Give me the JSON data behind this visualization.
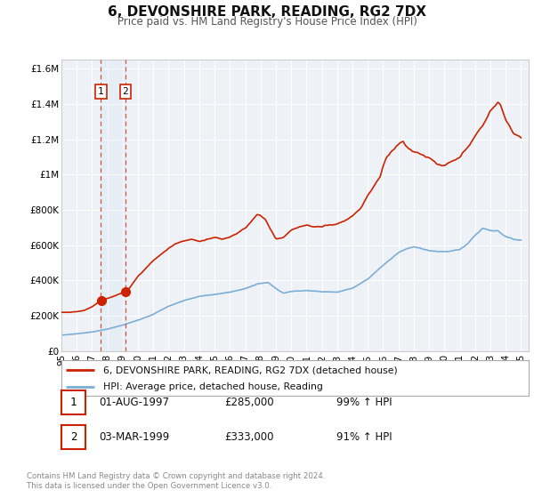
{
  "title": "6, DEVONSHIRE PARK, READING, RG2 7DX",
  "subtitle": "Price paid vs. HM Land Registry's House Price Index (HPI)",
  "background_color": "#ffffff",
  "plot_bg_color": "#eef2f7",
  "grid_color": "#ffffff",
  "hpi_line_color": "#7aaed6",
  "price_line_color": "#cc2200",
  "sale1_year": 1997.58,
  "sale1_price": 285000,
  "sale2_year": 1999.17,
  "sale2_price": 333000,
  "legend_label1": "6, DEVONSHIRE PARK, READING, RG2 7DX (detached house)",
  "legend_label2": "HPI: Average price, detached house, Reading",
  "table_row1": [
    "1",
    "01-AUG-1997",
    "£285,000",
    "99% ↑ HPI"
  ],
  "table_row2": [
    "2",
    "03-MAR-1999",
    "£333,000",
    "91% ↑ HPI"
  ],
  "footer1": "Contains HM Land Registry data © Crown copyright and database right 2024.",
  "footer2": "This data is licensed under the Open Government Licence v3.0.",
  "ylim_max": 1650000,
  "xmin": 1995.0,
  "xmax": 2025.5
}
